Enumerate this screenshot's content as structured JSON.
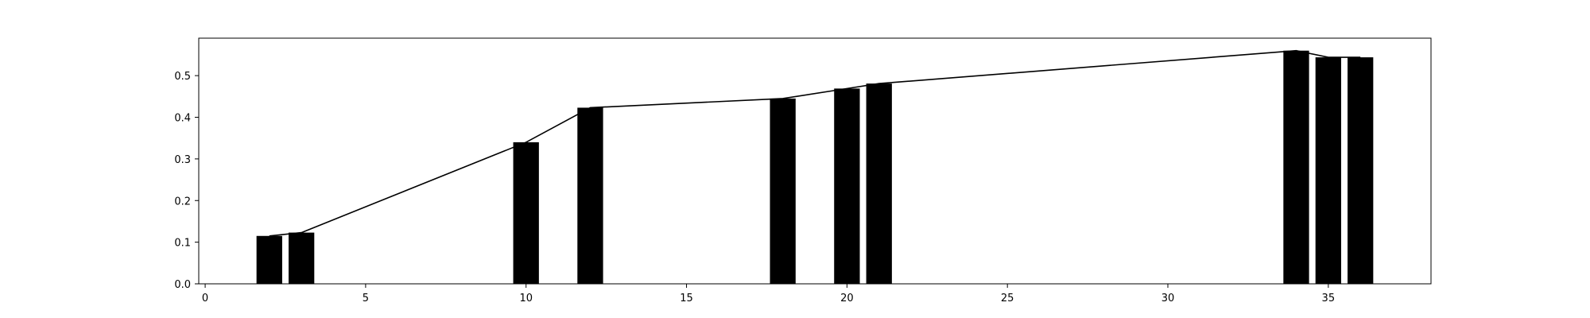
{
  "chart_data": {
    "type": "bar",
    "title": "",
    "xlabel": "",
    "ylabel": "",
    "x": [
      2,
      3,
      10,
      12,
      18,
      20,
      21,
      34,
      35,
      36
    ],
    "values": [
      0.115,
      0.123,
      0.34,
      0.423,
      0.445,
      0.469,
      0.481,
      0.56,
      0.544,
      0.544
    ],
    "xlim": [
      -0.2,
      38.2
    ],
    "ylim": [
      0,
      0.59
    ],
    "xticks": [
      0,
      5,
      10,
      15,
      20,
      25,
      30,
      35
    ],
    "yticks": [
      0.0,
      0.1,
      0.2,
      0.3,
      0.4,
      0.5
    ],
    "xtick_labels": [
      "0",
      "5",
      "10",
      "15",
      "20",
      "25",
      "30",
      "35"
    ],
    "ytick_labels": [
      "0.0",
      "0.1",
      "0.2",
      "0.3",
      "0.4",
      "0.5"
    ],
    "bar_color": "#000000",
    "line_color": "#000000",
    "overlay_line": true,
    "grid": false
  }
}
